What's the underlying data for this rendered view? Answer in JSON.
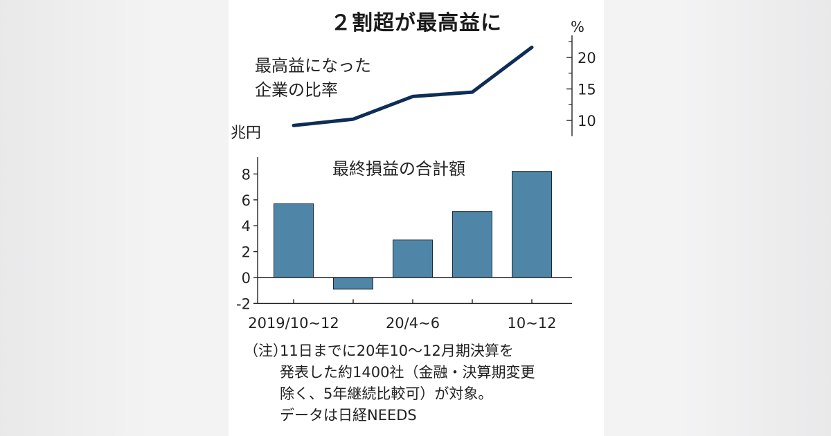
{
  "title": "２割超が最高益に",
  "chart_data": [
    {
      "type": "line",
      "title": "最高益になった企業の比率",
      "title_lines": [
        "最高益になった",
        "企業の比率"
      ],
      "unit": "%",
      "axis_side": "right",
      "x": [
        "2019/10~12",
        "",
        "20/4~6",
        "",
        "10~12"
      ],
      "series": [
        {
          "values": [
            9.2,
            10.2,
            13.8,
            14.5,
            21.6
          ]
        }
      ],
      "ylim": [
        8,
        23
      ],
      "yticks": [
        10,
        15,
        20
      ],
      "color": "#0e2d57"
    },
    {
      "type": "bar",
      "title": "最終損益の合計額",
      "unit": "兆円",
      "x": [
        "2019/10~12",
        "",
        "20/4~6",
        "",
        "10~12"
      ],
      "tick_labels": [
        "2019/10~12",
        "20/4~6",
        "10~12"
      ],
      "values": [
        5.7,
        -0.9,
        2.9,
        5.1,
        8.2
      ],
      "ylim": [
        -2,
        9
      ],
      "yticks": [
        -2,
        0,
        2,
        4,
        6,
        8
      ],
      "color": "#4f86a8"
    }
  ],
  "note": {
    "prefix": "（注）",
    "lines": [
      "11日までに20年10～12月期決算を",
      "発表した約1400社（金融・決算期変更",
      "除く、5年継続比較可）が対象。",
      "データは日経NEEDS"
    ]
  }
}
